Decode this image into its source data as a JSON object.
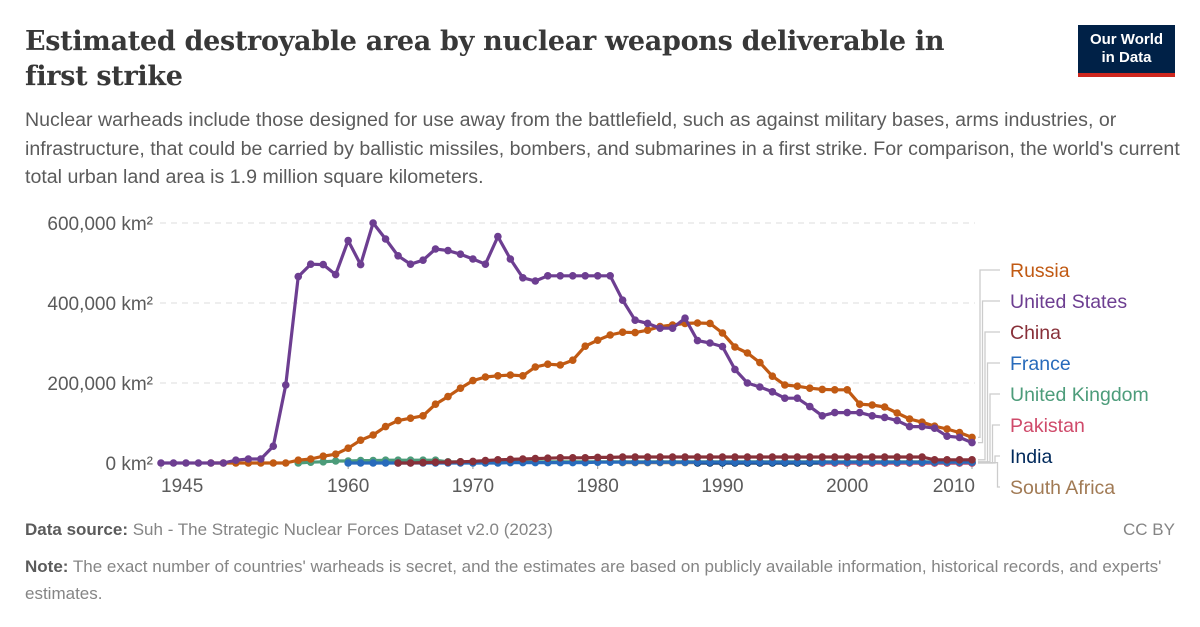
{
  "header": {
    "title": "Estimated destroyable area by nuclear weapons deliverable in first strike",
    "subtitle": "Nuclear warheads include those designed for use away from the battlefield, such as against military bases, arms industries, or infrastructure, that could be carried by ballistic missiles, bombers, and submarines in a first strike. For comparison, the world's current total urban land area is 1.9 million square kilometers.",
    "logo_line1": "Our World",
    "logo_line2": "in Data"
  },
  "footer": {
    "source_label": "Data source:",
    "source_text": "Suh - The Strategic Nuclear Forces Dataset v2.0 (2023)",
    "license": "CC BY",
    "note_label": "Note:",
    "note_text": "The exact number of countries' warheads is secret, and the estimates are based on publicly available information, historical records, and experts' estimates."
  },
  "chart_data": {
    "type": "line",
    "xlim": [
      1945,
      2010
    ],
    "ylim": [
      0,
      600000
    ],
    "y_unit": "km²",
    "x_ticks": [
      "1945",
      "1960",
      "1970",
      "1980",
      "1990",
      "2000",
      "2010"
    ],
    "y_ticks": [
      "0 km²",
      "200,000 km²",
      "400,000 km²",
      "600,000 km²"
    ],
    "y_tick_values": [
      0,
      200000,
      400000,
      600000
    ],
    "grid": "horizontal dashed",
    "legend": "right, line labels",
    "series": [
      {
        "name": "Russia",
        "color": "#c15a13",
        "start": 1949,
        "values": [
          0,
          0,
          0,
          0,
          0,
          0,
          0,
          7000,
          10000,
          17000,
          22000,
          37000,
          57000,
          70000,
          91000,
          106000,
          112000,
          118000,
          147000,
          166000,
          187000,
          206000,
          215000,
          218000,
          220000,
          218000,
          240000,
          247000,
          245000,
          257000,
          292000,
          307000,
          320000,
          327000,
          326000,
          332000,
          341000,
          345000,
          349000,
          350000,
          349000,
          325000,
          290000,
          275000,
          251000,
          217000,
          195000,
          192000,
          187000,
          184000,
          183000,
          183000,
          147000,
          145000,
          140000,
          125000,
          110000,
          102000,
          92000,
          85000,
          76000,
          64000
        ]
      },
      {
        "name": "United States",
        "color": "#6d3e91",
        "start": 1945,
        "values": [
          0,
          0,
          0,
          0,
          0,
          0,
          7000,
          10000,
          10000,
          42000,
          195000,
          466000,
          497000,
          496000,
          471000,
          556000,
          496000,
          600000,
          560000,
          518000,
          497000,
          507000,
          535000,
          531000,
          522000,
          510000,
          497000,
          566000,
          510000,
          463000,
          455000,
          468000,
          468000,
          468000,
          468000,
          468000,
          468000,
          407000,
          357000,
          349000,
          337000,
          337000,
          362000,
          306000,
          300000,
          291000,
          234000,
          200000,
          190000,
          178000,
          162000,
          162000,
          141000,
          118000,
          126000,
          126000,
          126000,
          118000,
          114000,
          106000,
          91000,
          91000,
          87000,
          67000,
          64000,
          51000
        ]
      },
      {
        "name": "China",
        "color": "#883039",
        "start": 1964,
        "values": [
          0,
          0,
          1000,
          2000,
          2000,
          3000,
          4000,
          6000,
          8000,
          9000,
          10000,
          11000,
          12000,
          13000,
          13000,
          13000,
          14000,
          14000,
          15000,
          15000,
          15000,
          15000,
          15000,
          15000,
          15000,
          15000,
          15000,
          15000,
          15000,
          15000,
          15000,
          15000,
          15000,
          15000,
          15000,
          15000,
          15000,
          15000,
          15000,
          15000,
          15000,
          15000,
          15000,
          8000,
          8000,
          8000,
          8000
        ]
      },
      {
        "name": "France",
        "color": "#286bbb",
        "start": 1960,
        "values": [
          0,
          0,
          0,
          0,
          0,
          0,
          0,
          0,
          0,
          0,
          0,
          0,
          0,
          1000,
          1000,
          1000,
          1000,
          1000,
          1000,
          1000,
          2000,
          2000,
          2000,
          2000,
          2000,
          2000,
          2000,
          2000,
          2000,
          2000,
          2000,
          2000,
          2000,
          2000,
          2000,
          2000,
          2000,
          2000,
          2000,
          2000,
          2000,
          2000,
          2000,
          2000,
          2000,
          2000,
          2000,
          2000,
          2000,
          2000,
          2000
        ]
      },
      {
        "name": "United Kingdom",
        "color": "#4c9c7a",
        "start": 1956,
        "values": [
          0,
          2000,
          3000,
          5000,
          5000,
          6000,
          6000,
          7000,
          7000,
          7000,
          7000,
          7000,
          3000,
          3000,
          3000,
          3000,
          3000,
          3000,
          3000,
          3000,
          3000,
          3000,
          3000,
          3000,
          3000,
          3000,
          3000,
          3000,
          3000,
          3000,
          3000,
          3000,
          3000,
          3000,
          3000,
          3000,
          3000,
          3000,
          3000,
          3000,
          3000,
          3000,
          3000,
          3000,
          3000,
          3000,
          3000,
          3000,
          3000,
          3000,
          3000,
          3000,
          3000,
          3000,
          3000
        ]
      },
      {
        "name": "Pakistan",
        "color": "#cf4a6a",
        "start": 1998,
        "values": [
          0,
          0,
          0,
          0,
          0,
          0,
          0,
          0,
          0,
          0,
          0,
          0,
          0
        ]
      },
      {
        "name": "India",
        "color": "#00295b",
        "start": 1988,
        "values": [
          0,
          0,
          0,
          0,
          0,
          0,
          0,
          0,
          0,
          0,
          0,
          0,
          0,
          0,
          0,
          0,
          0,
          0,
          0,
          0,
          0,
          0,
          0
        ]
      },
      {
        "name": "South Africa",
        "color": "#a17a54",
        "start": 1982,
        "values": [
          1000,
          1000,
          1000,
          1000,
          1000,
          1000,
          1000,
          1000
        ]
      }
    ]
  }
}
